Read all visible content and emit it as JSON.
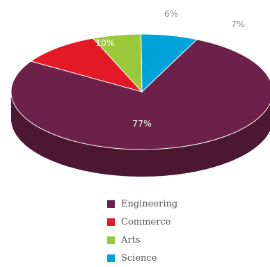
{
  "chart_data": {
    "type": "pie",
    "style": "3d",
    "slices": [
      {
        "label": "Engineering",
        "value": 77,
        "display": "77%",
        "color": "#6b2149",
        "side_color": "#4b1733"
      },
      {
        "label": "Commerce",
        "value": 10,
        "display": "10%",
        "color": "#e31925",
        "side_color": "#a3121a"
      },
      {
        "label": "Arts",
        "value": 6,
        "display": "6%",
        "color": "#99c93a",
        "side_color": "#6b8d29"
      },
      {
        "label": "Science",
        "value": 7,
        "display": "7%",
        "color": "#00a3d9",
        "side_color": "#0b6e8f"
      }
    ],
    "legend_position": "bottom"
  }
}
